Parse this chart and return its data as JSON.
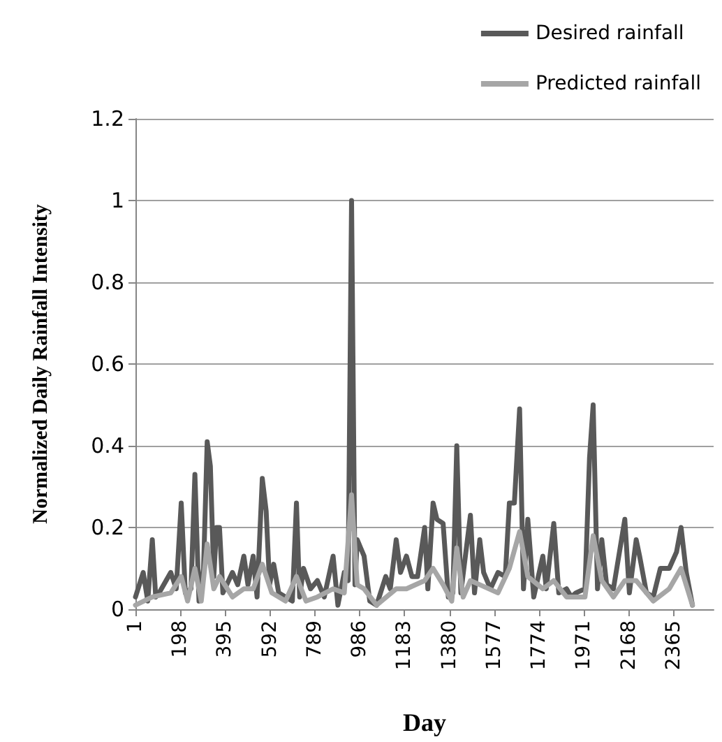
{
  "chart_data": {
    "type": "line",
    "xlabel": "Day",
    "ylabel": "Normalized Daily Rainfall Intensity",
    "xlim": [
      1,
      2540
    ],
    "xticks": [
      1,
      198,
      395,
      592,
      789,
      986,
      1183,
      1380,
      1577,
      1774,
      1971,
      2168,
      2365
    ],
    "ylim": [
      0,
      1.2
    ],
    "yticks": [
      0,
      0.2,
      0.4,
      0.6,
      0.8,
      1,
      1.2
    ],
    "grid": "y",
    "legend": "top right",
    "marker": "none",
    "line_style": "solid",
    "series": [
      {
        "name": "Desired rainfall",
        "color": "#595959",
        "x": [
          1,
          35,
          55,
          75,
          90,
          105,
          156,
          180,
          202,
          220,
          245,
          262,
          280,
          300,
          316,
          330,
          345,
          357,
          370,
          385,
          427,
          450,
          477,
          495,
          518,
          535,
          558,
          575,
          590,
          608,
          630,
          660,
          690,
          708,
          722,
          739,
          770,
          800,
          830,
          869,
          890,
          918,
          935,
          950,
          965,
          975,
          990,
          1005,
          1030,
          1060,
          1100,
          1120,
          1146,
          1165,
          1191,
          1215,
          1240,
          1271,
          1285,
          1308,
          1325,
          1352,
          1375,
          1395,
          1412,
          1430,
          1472,
          1490,
          1513,
          1530,
          1560,
          1593,
          1625,
          1643,
          1665,
          1688,
          1705,
          1724,
          1750,
          1790,
          1805,
          1838,
          1860,
          1894,
          1915,
          1935,
          1975,
          1995,
          2011,
          2030,
          2049,
          2070,
          2100,
          2150,
          2170,
          2200,
          2215,
          2245,
          2275,
          2306,
          2345,
          2377,
          2397,
          2420,
          2447
        ],
        "values": [
          0.03,
          0.09,
          0.02,
          0.17,
          0.03,
          0.04,
          0.09,
          0.05,
          0.26,
          0.04,
          0.05,
          0.33,
          0.02,
          0.1,
          0.41,
          0.35,
          0.08,
          0.2,
          0.2,
          0.04,
          0.09,
          0.06,
          0.13,
          0.06,
          0.13,
          0.03,
          0.32,
          0.24,
          0.06,
          0.11,
          0.04,
          0.03,
          0.02,
          0.26,
          0.03,
          0.1,
          0.05,
          0.07,
          0.03,
          0.13,
          0.01,
          0.09,
          0.07,
          1.0,
          0.06,
          0.17,
          0.15,
          0.13,
          0.02,
          0.01,
          0.08,
          0.05,
          0.17,
          0.09,
          0.13,
          0.08,
          0.08,
          0.2,
          0.05,
          0.26,
          0.22,
          0.21,
          0.03,
          0.04,
          0.4,
          0.04,
          0.23,
          0.04,
          0.17,
          0.09,
          0.05,
          0.09,
          0.08,
          0.26,
          0.26,
          0.49,
          0.05,
          0.22,
          0.03,
          0.13,
          0.05,
          0.21,
          0.04,
          0.05,
          0.03,
          0.04,
          0.05,
          0.37,
          0.5,
          0.05,
          0.17,
          0.06,
          0.05,
          0.22,
          0.04,
          0.17,
          0.13,
          0.04,
          0.03,
          0.1,
          0.1,
          0.14,
          0.2,
          0.09,
          0.01
        ]
      },
      {
        "name": "Predicted rainfall",
        "color": "#a6a6a6",
        "x": [
          1,
          75,
          156,
          202,
          230,
          262,
          290,
          316,
          345,
          370,
          427,
          477,
          518,
          558,
          600,
          660,
          708,
          750,
          800,
          869,
          918,
          950,
          975,
          1005,
          1060,
          1146,
          1191,
          1271,
          1308,
          1352,
          1390,
          1412,
          1440,
          1472,
          1513,
          1593,
          1643,
          1688,
          1724,
          1790,
          1838,
          1894,
          1975,
          2011,
          2049,
          2100,
          2150,
          2200,
          2275,
          2345,
          2397,
          2447
        ],
        "values": [
          0.01,
          0.03,
          0.04,
          0.08,
          0.02,
          0.1,
          0.02,
          0.16,
          0.05,
          0.08,
          0.03,
          0.05,
          0.05,
          0.11,
          0.04,
          0.02,
          0.08,
          0.02,
          0.03,
          0.05,
          0.04,
          0.28,
          0.06,
          0.05,
          0.01,
          0.05,
          0.05,
          0.07,
          0.1,
          0.06,
          0.02,
          0.15,
          0.03,
          0.07,
          0.06,
          0.04,
          0.1,
          0.19,
          0.08,
          0.05,
          0.07,
          0.03,
          0.03,
          0.18,
          0.07,
          0.03,
          0.07,
          0.07,
          0.02,
          0.05,
          0.1,
          0.01
        ]
      }
    ]
  }
}
